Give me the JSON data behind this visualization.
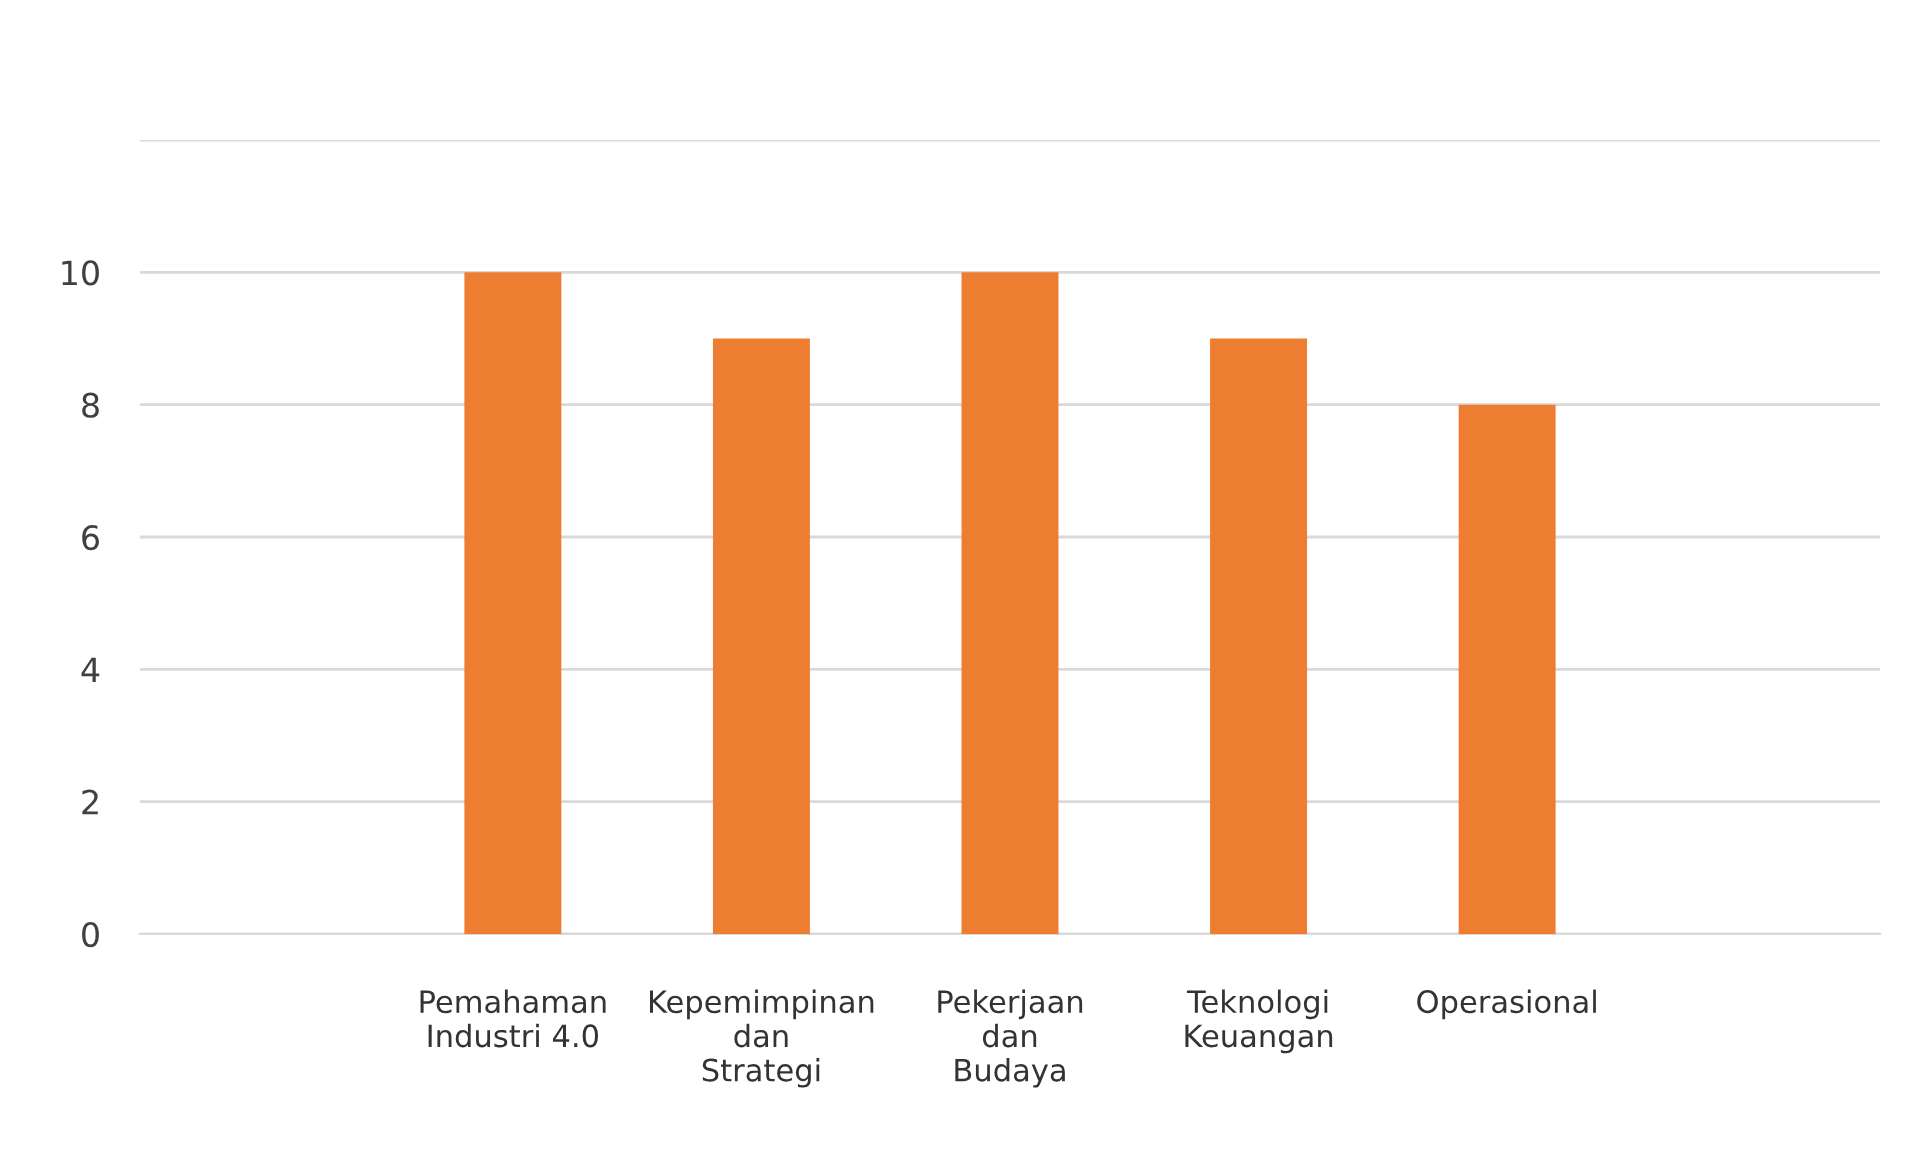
{
  "chart_data": {
    "type": "bar",
    "categories": [
      null,
      "Pemahaman\nIndustri 4.0",
      "Kepemimpinan\ndan\nStrategi",
      "Pekerjaan\ndan\nBudaya",
      "Teknologi\nKeuangan",
      "Operasional",
      null
    ],
    "values": [
      null,
      10,
      9,
      10,
      9,
      8,
      null
    ],
    "color": "#ed7d31",
    "ylim": [
      0,
      12
    ],
    "yticks": [
      0,
      2,
      4,
      6,
      8,
      10,
      {
        "value": 12,
        "label": null
      }
    ],
    "grid": "y"
  }
}
